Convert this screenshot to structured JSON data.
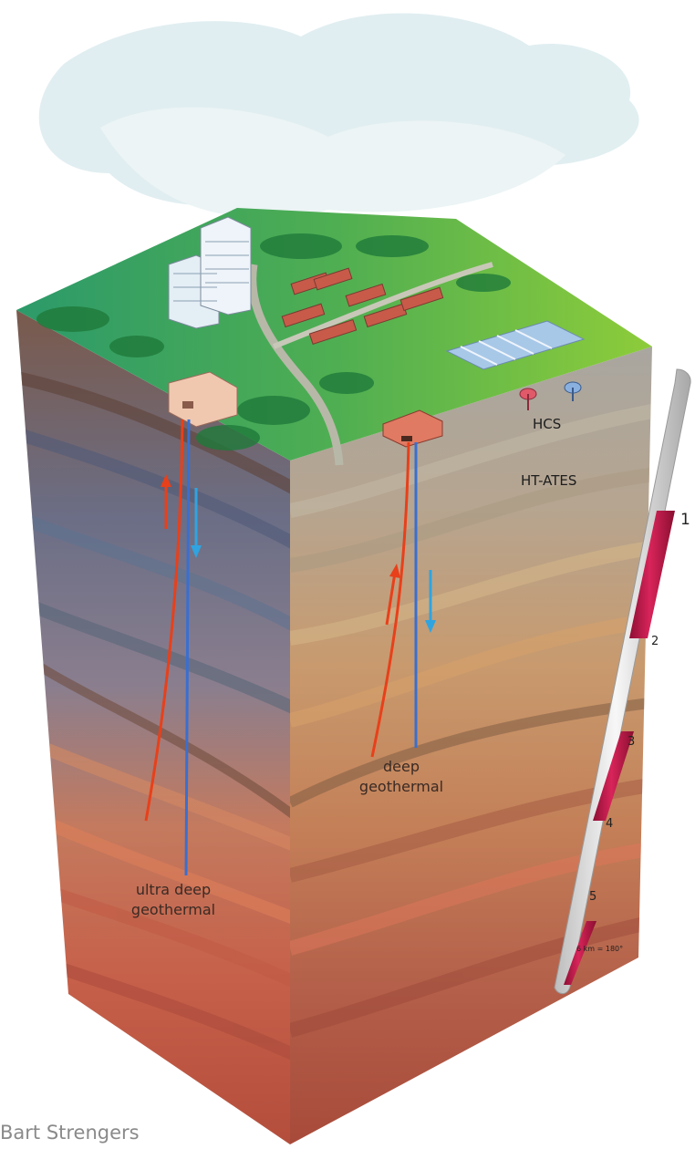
{
  "labels": {
    "hcs": "HCS",
    "ht_ates": "HT-ATES",
    "deep_line1": "deep",
    "deep_line2": "geothermal",
    "ultra_line1": "ultra deep",
    "ultra_line2": "geothermal"
  },
  "depth_scale": {
    "marks": [
      "1",
      "2",
      "3",
      "4",
      "5"
    ],
    "note": "6 km = 180°"
  },
  "credit": "Bart Strengers",
  "colors": {
    "hot_pipe": "#e8401a",
    "cold_pipe": "#3a6fd0",
    "scale_hot": "#c8174a",
    "scale_cold": "#d8d8d8"
  }
}
